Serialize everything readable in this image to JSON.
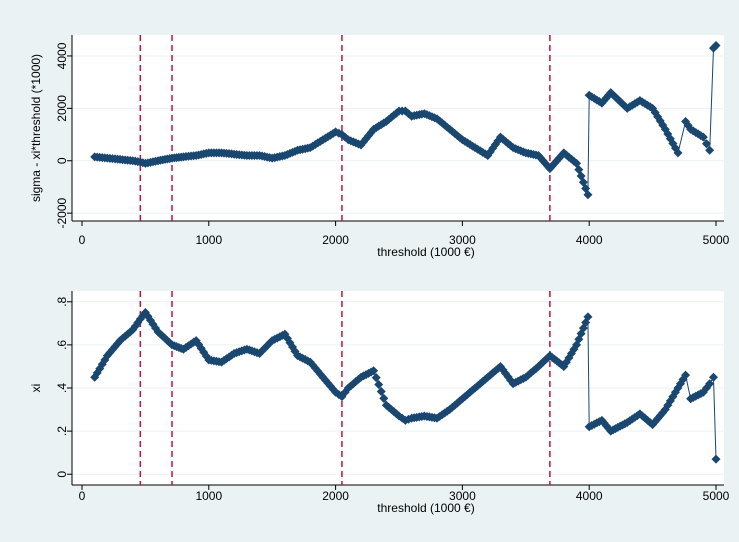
{
  "colors": {
    "outer_background": "#eaf2f3",
    "plot_background": "#ffffff",
    "marker": "#1a476f",
    "reference_line": "#c0143c",
    "axis": "#000000",
    "grid": "#eaf2f3"
  },
  "chart_data": [
    {
      "type": "scatter",
      "marker": "diamond",
      "connected_drops": true,
      "xlabel": "threshold (1000 €)",
      "ylabel": "sigma - xi*threshold (*1000)",
      "xlim": [
        0,
        5000
      ],
      "ylim": [
        -2300,
        4800
      ],
      "xticks": [
        0,
        1000,
        2000,
        3000,
        4000,
        5000
      ],
      "yticks": [
        -2000,
        0,
        2000,
        4000
      ],
      "xtick_labels": [
        "0",
        "1000",
        "2000",
        "3000",
        "4000",
        "5000"
      ],
      "ytick_labels": [
        "-2000",
        "0",
        "2000",
        "4000"
      ],
      "grid": true,
      "vlines": [
        460,
        710,
        2050,
        3690
      ],
      "x": [
        100,
        200,
        300,
        400,
        460,
        500,
        600,
        710,
        800,
        900,
        1000,
        1100,
        1200,
        1300,
        1400,
        1500,
        1600,
        1700,
        1800,
        1900,
        2000,
        2050,
        2100,
        2200,
        2300,
        2400,
        2500,
        2550,
        2600,
        2700,
        2800,
        2900,
        3000,
        3100,
        3200,
        3300,
        3400,
        3500,
        3600,
        3690,
        3800,
        3900,
        3990,
        4000,
        4100,
        4170,
        4300,
        4400,
        4500,
        4600,
        4700,
        4760,
        4800,
        4900,
        4950,
        4980,
        5000
      ],
      "y": [
        150,
        100,
        50,
        0,
        -50,
        -100,
        0,
        100,
        150,
        200,
        300,
        300,
        250,
        200,
        200,
        100,
        200,
        400,
        500,
        800,
        1100,
        1000,
        800,
        600,
        1200,
        1500,
        1900,
        1900,
        1700,
        1800,
        1600,
        1200,
        800,
        500,
        200,
        900,
        500,
        300,
        200,
        -300,
        300,
        -100,
        -1300,
        2500,
        2200,
        2600,
        2000,
        2300,
        2000,
        1200,
        300,
        1500,
        1200,
        900,
        400,
        4300,
        4400
      ]
    },
    {
      "type": "scatter",
      "marker": "diamond",
      "connected_drops": true,
      "xlabel": "threshold (1000 €)",
      "ylabel": "xi",
      "xlim": [
        0,
        5000
      ],
      "ylim": [
        -0.05,
        0.85
      ],
      "xticks": [
        0,
        1000,
        2000,
        3000,
        4000,
        5000
      ],
      "yticks": [
        0,
        0.2,
        0.4,
        0.6,
        0.8
      ],
      "xtick_labels": [
        "0",
        "1000",
        "2000",
        "3000",
        "4000",
        "5000"
      ],
      "ytick_labels": [
        "0",
        ".2",
        ".4",
        ".6",
        ".8"
      ],
      "grid": true,
      "vlines": [
        460,
        710,
        2050,
        3690
      ],
      "x": [
        100,
        200,
        300,
        400,
        460,
        500,
        600,
        710,
        800,
        900,
        1000,
        1100,
        1200,
        1300,
        1400,
        1500,
        1600,
        1700,
        1800,
        1900,
        2000,
        2050,
        2100,
        2200,
        2300,
        2400,
        2500,
        2550,
        2600,
        2700,
        2800,
        2900,
        3000,
        3100,
        3200,
        3300,
        3400,
        3500,
        3600,
        3690,
        3800,
        3900,
        3990,
        4000,
        4100,
        4170,
        4300,
        4400,
        4500,
        4600,
        4700,
        4760,
        4800,
        4900,
        4950,
        4980,
        5000
      ],
      "y": [
        0.45,
        0.55,
        0.62,
        0.67,
        0.72,
        0.75,
        0.66,
        0.6,
        0.58,
        0.62,
        0.53,
        0.52,
        0.56,
        0.58,
        0.56,
        0.62,
        0.65,
        0.55,
        0.52,
        0.45,
        0.38,
        0.36,
        0.4,
        0.45,
        0.48,
        0.32,
        0.27,
        0.25,
        0.26,
        0.27,
        0.26,
        0.3,
        0.35,
        0.4,
        0.45,
        0.5,
        0.42,
        0.45,
        0.5,
        0.55,
        0.5,
        0.6,
        0.73,
        0.22,
        0.25,
        0.2,
        0.24,
        0.28,
        0.23,
        0.3,
        0.4,
        0.46,
        0.35,
        0.38,
        0.42,
        0.45,
        0.07
      ]
    }
  ]
}
